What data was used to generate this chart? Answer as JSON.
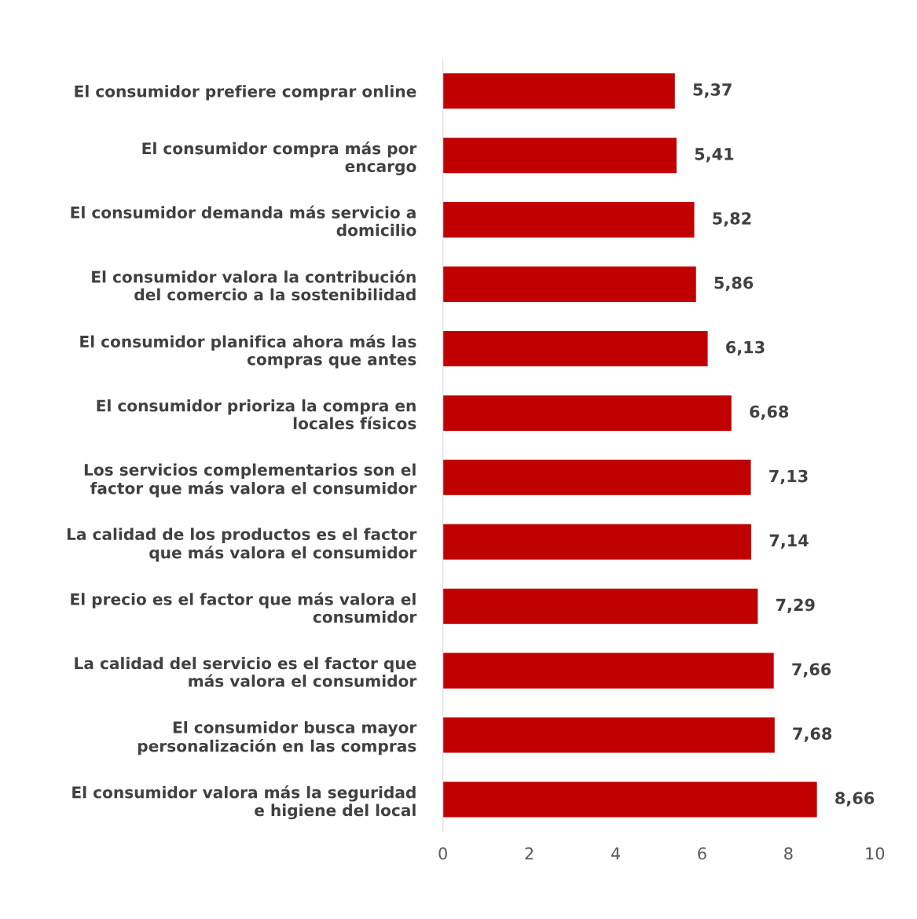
{
  "chart_data": {
    "type": "bar",
    "orientation": "horizontal",
    "categories": [
      "El consumidor prefiere comprar online",
      "El consumidor compra más por\nencargo",
      "El consumidor demanda más servicio a\ndomicilio",
      "El consumidor valora la contribución\ndel comercio a la sostenibilidad",
      "El consumidor planifica ahora más las\ncompras que antes",
      "El consumidor prioriza la compra en\nlocales físicos",
      "Los servicios complementarios son el\nfactor que más valora el consumidor",
      "La calidad de los productos es el factor\nque más valora el consumidor",
      "El precio es el factor que más valora el\nconsumidor",
      "La calidad del servicio es el factor que\nmás valora el consumidor",
      "El consumidor busca mayor\npersonalización en las compras",
      "El consumidor valora más la seguridad\ne higiene del local"
    ],
    "values": [
      5.37,
      5.41,
      5.82,
      5.86,
      6.13,
      6.68,
      7.13,
      7.14,
      7.29,
      7.66,
      7.68,
      8.66
    ],
    "value_labels": [
      "5,37",
      "5,41",
      "5,82",
      "5,86",
      "6,13",
      "6,68",
      "7,13",
      "7,14",
      "7,29",
      "7,66",
      "7,68",
      "8,66"
    ],
    "color": "#c00000",
    "xlim": [
      0,
      10
    ],
    "xticks": [
      0,
      2,
      4,
      6,
      8,
      10
    ],
    "grid": false
  }
}
